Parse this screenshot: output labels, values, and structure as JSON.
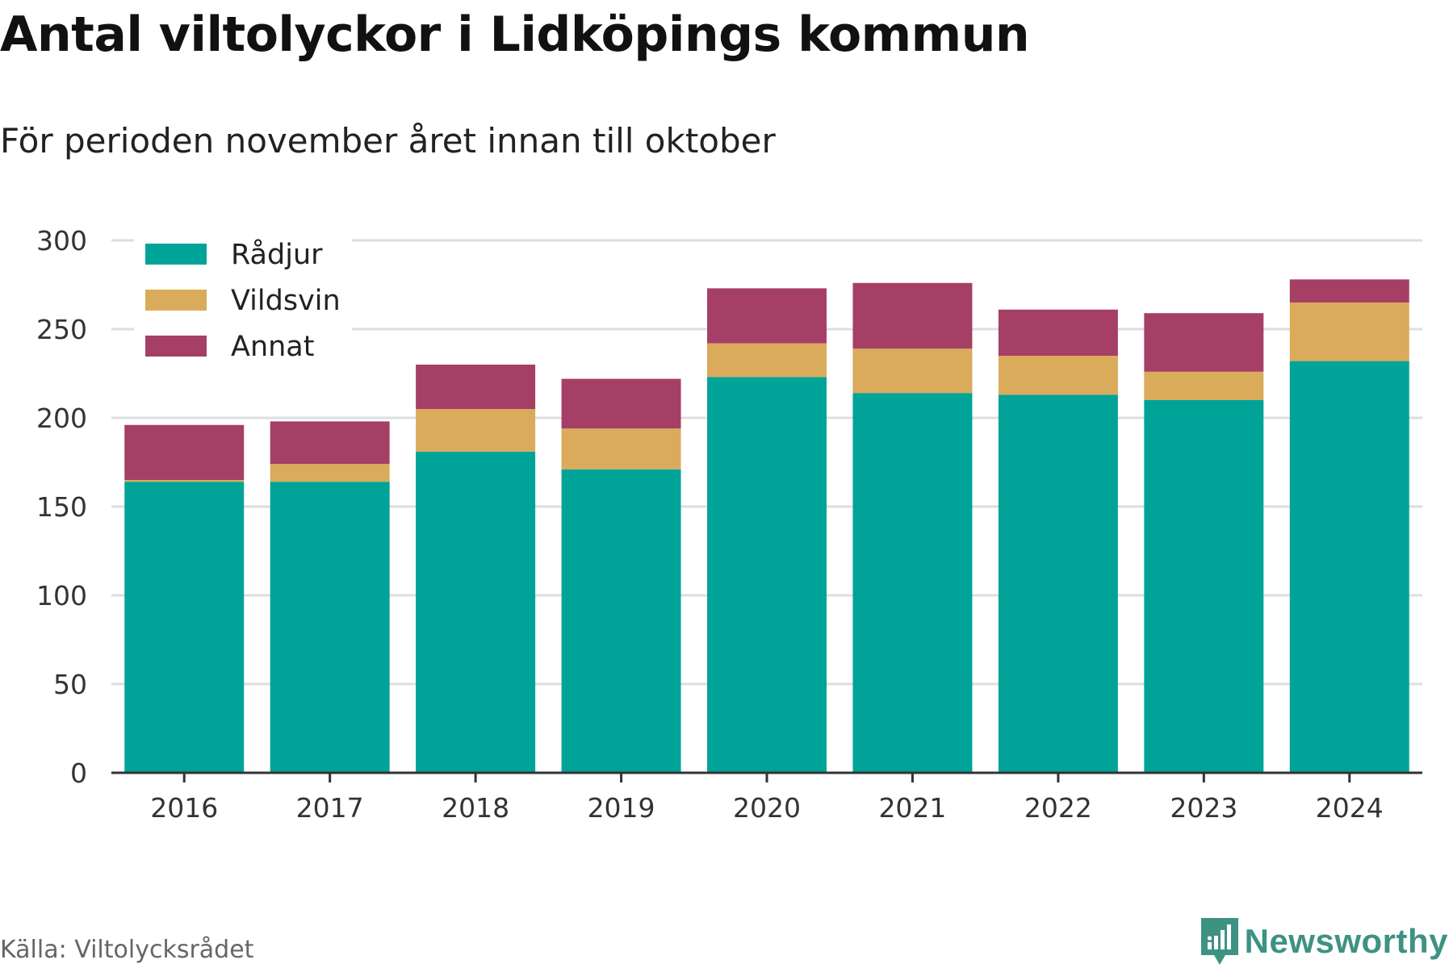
{
  "header": {
    "title": "Antal viltolyckor i Lidköpings kommun",
    "subtitle": "För perioden november året innan till oktober"
  },
  "footer": {
    "source": "Källa: Viltolycksrådet",
    "brand": "Newsworthy",
    "brand_icon": "bar-chart-logo-icon"
  },
  "chart_data": {
    "type": "bar",
    "stacked": true,
    "categories": [
      "2016",
      "2017",
      "2018",
      "2019",
      "2020",
      "2021",
      "2022",
      "2023",
      "2024"
    ],
    "series": [
      {
        "name": "Rådjur",
        "color": "#00a398",
        "values": [
          164,
          164,
          181,
          171,
          223,
          214,
          213,
          210,
          232
        ]
      },
      {
        "name": "Vildsvin",
        "color": "#d9ab5b",
        "values": [
          1,
          10,
          24,
          23,
          19,
          25,
          22,
          16,
          33
        ]
      },
      {
        "name": "Annat",
        "color": "#a63f66",
        "values": [
          31,
          24,
          25,
          28,
          31,
          37,
          26,
          33,
          13
        ]
      }
    ],
    "ylim": [
      0,
      300
    ],
    "yticks": [
      0,
      50,
      100,
      150,
      200,
      250,
      300
    ],
    "grid": true,
    "legend_position": "top-left"
  }
}
